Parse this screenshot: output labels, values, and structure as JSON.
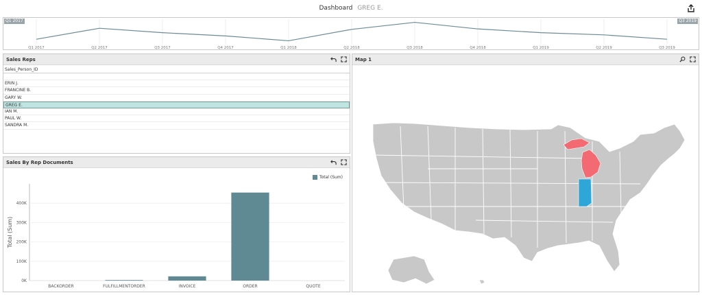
{
  "header": {
    "title": "Dashboard",
    "filter": "GREG E."
  },
  "range": {
    "start_flag": "Q1 2017",
    "end_flag": "Q3 2019",
    "ticks": [
      "Q1 2017",
      "Q2 2017",
      "Q3 2017",
      "Q4 2017",
      "Q1 2018",
      "Q2 2018",
      "Q3 2018",
      "Q4 2018",
      "Q1 2019",
      "Q2 2019",
      "Q3 2019"
    ],
    "line_color": "#6b8a96"
  },
  "sales_reps": {
    "title": "Sales Reps",
    "column": "Sales_Person_ID",
    "rows": [
      "",
      "ERIN J.",
      "FRANCINE B.",
      "GARY W.",
      "GREG E.",
      "IAN M.",
      "PAUL W.",
      "SANDRA M."
    ],
    "selected": "GREG E."
  },
  "sales_docs": {
    "title": "Sales By Rep Documents",
    "legend": "Total (Sum)"
  },
  "map": {
    "title": "Map 1",
    "highlight_colors": {
      "michigan": "#f46a72",
      "indiana": "#2ea6d8",
      "base": "#c8c8c8"
    }
  },
  "chart_data": {
    "type": "bar",
    "categories": [
      "BACKORDER",
      "FULFILLMENTORDER",
      "INVOICE",
      "ORDER",
      "QUOTE"
    ],
    "values": [
      0,
      3000,
      22000,
      455000,
      0
    ],
    "ylabel": "Total (Sum)",
    "yticks": [
      "0K",
      "100K",
      "200K",
      "300K",
      "400K"
    ],
    "ylim": [
      0,
      500000
    ],
    "color": "#5f8a93",
    "legend": "Total (Sum)",
    "legend_position": "top-right"
  }
}
